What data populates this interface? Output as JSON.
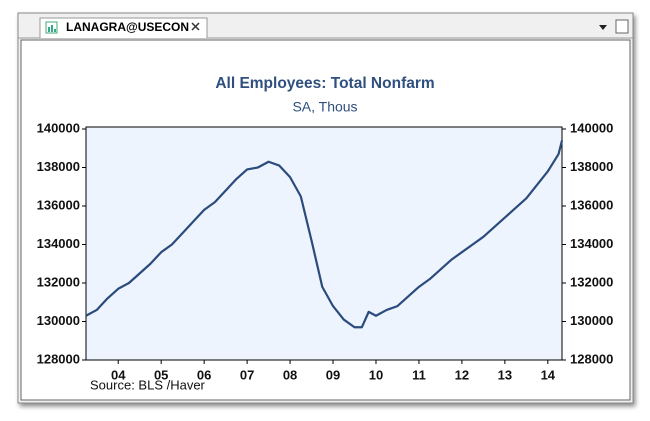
{
  "window": {
    "tab": "LANAGRA@USECON"
  },
  "chart_data": {
    "type": "line",
    "title": "All Employees: Total Nonfarm",
    "subtitle": "SA, Thous",
    "source": "Source:  BLS /Haver",
    "x": [
      2003.75,
      2004.0,
      2004.25,
      2004.5,
      2004.75,
      2005.0,
      2005.25,
      2005.5,
      2005.75,
      2006.0,
      2006.25,
      2006.5,
      2006.75,
      2007.0,
      2007.25,
      2007.5,
      2007.75,
      2008.0,
      2008.25,
      2008.5,
      2008.75,
      2009.0,
      2009.25,
      2009.5,
      2009.75,
      2010.0,
      2010.17,
      2010.33,
      2010.5,
      2010.75,
      2011.0,
      2011.25,
      2011.5,
      2011.75,
      2012.0,
      2012.25,
      2012.5,
      2012.75,
      2013.0,
      2013.25,
      2013.5,
      2013.75,
      2014.0,
      2014.25,
      2014.5,
      2014.75,
      2014.83
    ],
    "series": [
      {
        "name": "All Employees: Total Nonfarm",
        "color": "#2b4b7c",
        "values": [
          130300,
          130600,
          131200,
          131700,
          132000,
          132500,
          133000,
          133600,
          134000,
          134600,
          135200,
          135800,
          136200,
          136800,
          137400,
          137900,
          138000,
          138300,
          138100,
          137500,
          136500,
          134200,
          131800,
          130800,
          130100,
          129700,
          129700,
          130500,
          130300,
          130600,
          130800,
          131300,
          131800,
          132200,
          132700,
          133200,
          133600,
          134000,
          134400,
          134900,
          135400,
          135900,
          136400,
          137100,
          137800,
          138700,
          139400
        ]
      }
    ],
    "xlim": [
      2003.75,
      2014.83
    ],
    "xticks": [
      {
        "value": 2004.5,
        "label": "04"
      },
      {
        "value": 2005.5,
        "label": "05"
      },
      {
        "value": 2006.5,
        "label": "06"
      },
      {
        "value": 2007.5,
        "label": "07"
      },
      {
        "value": 2008.5,
        "label": "08"
      },
      {
        "value": 2009.5,
        "label": "09"
      },
      {
        "value": 2010.5,
        "label": "10"
      },
      {
        "value": 2011.5,
        "label": "11"
      },
      {
        "value": 2012.5,
        "label": "12"
      },
      {
        "value": 2013.5,
        "label": "13"
      },
      {
        "value": 2014.5,
        "label": "14"
      }
    ],
    "ylim": [
      128000,
      140000
    ],
    "yticks": [
      128000,
      130000,
      132000,
      134000,
      136000,
      138000,
      140000
    ],
    "y2lim": [
      128000,
      140000
    ],
    "y2ticks": [
      128000,
      130000,
      132000,
      134000,
      136000,
      138000,
      140000
    ]
  }
}
